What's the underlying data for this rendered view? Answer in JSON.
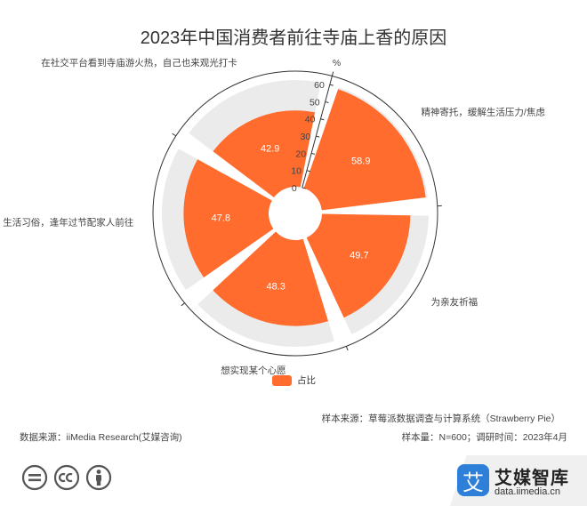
{
  "chart_data": {
    "type": "bar",
    "subtype": "polar",
    "title": "2023年中国消费者前往寺庙上香的原因",
    "unit_label": "%",
    "radial_ticks": [
      0,
      10,
      20,
      30,
      40,
      50,
      60
    ],
    "radial_max": 60,
    "categories": [
      "精神寄托，缓解生活压力/焦虑",
      "为亲友祈福",
      "想实现某个心愿",
      "生活习俗，逢年过节配家人前往",
      "在社交平台看到寺庙游火热，自己也来观光打卡"
    ],
    "series": [
      {
        "name": "占比",
        "values": [
          58.9,
          49.7,
          48.3,
          47.8,
          42.9
        ]
      }
    ],
    "colors": {
      "bar": "#ff6c2e",
      "axis": "#333333",
      "track": "#ebebeb"
    },
    "legend": "bottom-center"
  },
  "footer": {
    "source_label": "数据来源：iiMedia Research(艾媒咨询)",
    "sample_source": "样本来源：草莓派数据调查与计算系统（Strawberry Pie）",
    "sample_info": "样本量：N=600；调研时间：2023年4月"
  },
  "brand": {
    "logo_char": "艾",
    "name": "艾媒智库",
    "url": "data.iimedia.cn"
  },
  "icons": [
    "equal-icon",
    "cc-icon",
    "person-icon"
  ]
}
